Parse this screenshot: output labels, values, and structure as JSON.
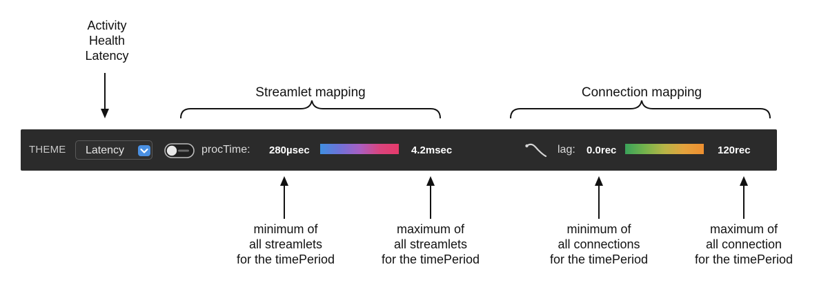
{
  "theme_options_annotation": [
    "Activity",
    "Health",
    "Latency"
  ],
  "sections": {
    "streamlet": "Streamlet mapping",
    "connection": "Connection mapping"
  },
  "toolbar": {
    "theme_label": "THEME",
    "theme_selected": "Latency",
    "streamlet_metric_label": "procTime:",
    "streamlet_min": "280µsec",
    "streamlet_max": "4.2msec",
    "connection_metric_label": "lag:",
    "connection_min": "0.0rec",
    "connection_max": "120rec",
    "colors": {
      "background": "#2b2b2b",
      "accent": "#4a90e2",
      "proc_gradient": [
        "#3f8fe0",
        "#a85fc3",
        "#e63a6a"
      ],
      "lag_gradient": [
        "#3aa25a",
        "#b8b547",
        "#ee8f30"
      ]
    },
    "icons": {
      "select": "chevron-down-icon",
      "toggle": "toggle-switch-icon",
      "connection": "connection-curve-icon"
    }
  },
  "annotations": {
    "streamlet_min": [
      "minimum of",
      "all streamlets",
      "for the timePeriod"
    ],
    "streamlet_max": [
      "maximum of",
      "all streamlets",
      "for the timePeriod"
    ],
    "connection_min": [
      "minimum of",
      "all connections",
      "for the timePeriod"
    ],
    "connection_max": [
      "maximum of",
      "all connection",
      "for the timePeriod"
    ]
  }
}
